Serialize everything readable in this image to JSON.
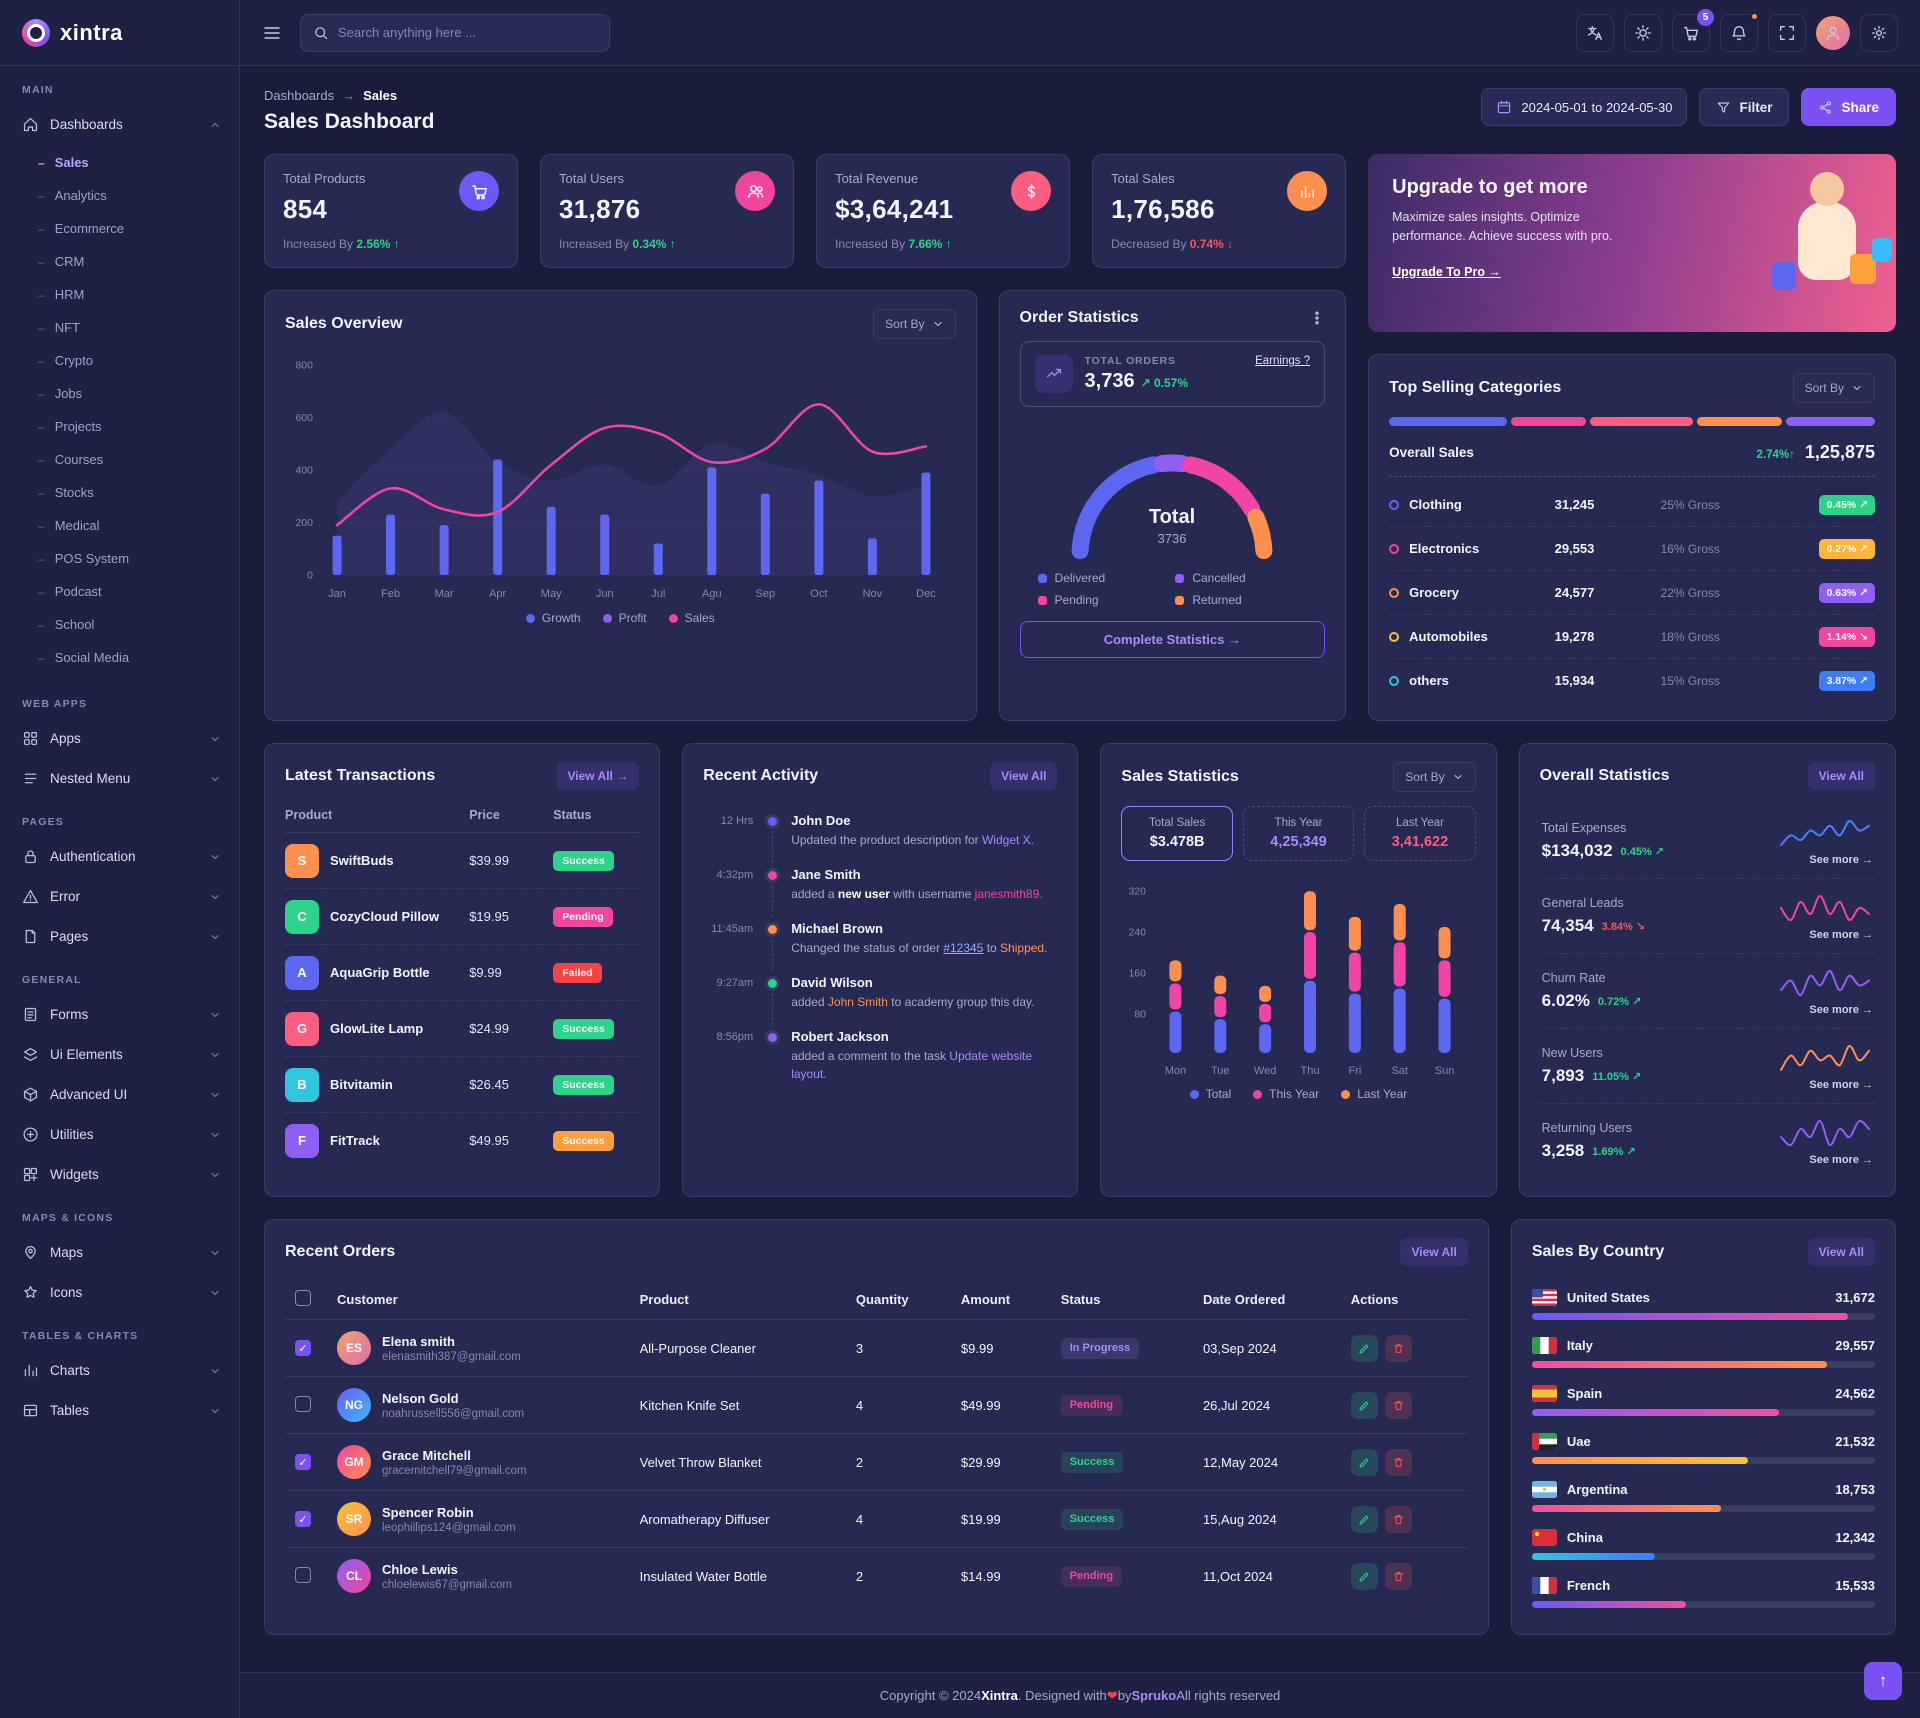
{
  "brand": {
    "name": "xintra"
  },
  "header": {
    "search_placeholder": "Search anything here ...",
    "cart_count": "5"
  },
  "page": {
    "breadcrumb": [
      "Dashboards",
      "Sales"
    ],
    "title": "Sales Dashboard",
    "date_range": "2024-05-01 to 2024-05-30",
    "filter_label": "Filter",
    "share_label": "Share"
  },
  "sidebar": {
    "sections": [
      {
        "label": "Main",
        "items": [
          {
            "label": "Dashboards",
            "icon": "home",
            "expanded": true,
            "active": true,
            "children": [
              "Sales",
              "Analytics",
              "Ecommerce",
              "CRM",
              "HRM",
              "NFT",
              "Crypto",
              "Jobs",
              "Projects",
              "Courses",
              "Stocks",
              "Medical",
              "POS System",
              "Podcast",
              "School",
              "Social Media"
            ],
            "active_child": "Sales"
          }
        ]
      },
      {
        "label": "Web Apps",
        "items": [
          {
            "label": "Apps",
            "icon": "apps"
          },
          {
            "label": "Nested Menu",
            "icon": "nested"
          }
        ]
      },
      {
        "label": "Pages",
        "items": [
          {
            "label": "Authentication",
            "icon": "lock"
          },
          {
            "label": "Error",
            "icon": "error"
          },
          {
            "label": "Pages",
            "icon": "pages"
          }
        ]
      },
      {
        "label": "General",
        "items": [
          {
            "label": "Forms",
            "icon": "forms"
          },
          {
            "label": "Ui Elements",
            "icon": "ui"
          },
          {
            "label": "Advanced UI",
            "icon": "advanced"
          },
          {
            "label": "Utilities",
            "icon": "utilities"
          },
          {
            "label": "Widgets",
            "icon": "widgets"
          }
        ]
      },
      {
        "label": "Maps & Icons",
        "items": [
          {
            "label": "Maps",
            "icon": "maps"
          },
          {
            "label": "Icons",
            "icon": "icons"
          }
        ]
      },
      {
        "label": "Tables & Charts",
        "items": [
          {
            "label": "Charts",
            "icon": "charts"
          },
          {
            "label": "Tables",
            "icon": "tables"
          }
        ]
      }
    ]
  },
  "stat_cards": [
    {
      "label": "Total Products",
      "value": "854",
      "change_prefix": "Increased By",
      "change": "2.56%",
      "dir": "up",
      "icon": "cart",
      "icon_bg": "#6a5af9"
    },
    {
      "label": "Total Users",
      "value": "31,876",
      "change_prefix": "Increased By",
      "change": "0.34%",
      "dir": "up",
      "icon": "users",
      "icon_bg": "#f0479c"
    },
    {
      "label": "Total Revenue",
      "value": "$3,64,241",
      "change_prefix": "Increased By",
      "change": "7.66%",
      "dir": "up",
      "icon": "dollar",
      "icon_bg": "#fd5d7e"
    },
    {
      "label": "Total Sales",
      "value": "1,76,586",
      "change_prefix": "Decreased By",
      "change": "0.74%",
      "dir": "down",
      "icon": "chartbar",
      "icon_bg": "#ff8f4e"
    }
  ],
  "upgrade": {
    "title": "Upgrade to get more",
    "text": "Maximize sales insights. Optimize performance. Achieve success with pro.",
    "cta": "Upgrade To Pro →"
  },
  "sales_overview": {
    "title": "Sales Overview",
    "sort_label": "Sort By",
    "chart": {
      "type": "combo",
      "months": [
        "Jan",
        "Feb",
        "Mar",
        "Apr",
        "May",
        "Jun",
        "Jul",
        "Agu",
        "Sep",
        "Oct",
        "Nov",
        "Dec"
      ],
      "growth_bars": [
        150,
        230,
        190,
        440,
        260,
        230,
        120,
        410,
        310,
        360,
        140,
        390
      ],
      "sales_line": [
        190,
        330,
        250,
        240,
        420,
        560,
        540,
        430,
        480,
        650,
        470,
        490
      ],
      "profit_area": [
        280,
        480,
        620,
        430,
        360,
        420,
        340,
        500,
        430,
        380,
        300,
        340
      ],
      "yticks": [
        0,
        200,
        400,
        600,
        800
      ],
      "ymax": 800
    },
    "legend": [
      {
        "label": "Growth",
        "color": "#5e67f2"
      },
      {
        "label": "Profit",
        "color": "#8f5ff5"
      },
      {
        "label": "Sales",
        "color": "#f243a6"
      }
    ]
  },
  "order_statistics": {
    "title": "Order Statistics",
    "total_label": "TOTAL ORDERS",
    "total": "3,736",
    "change": "0.57%",
    "earnings_link": "Earnings ?",
    "gauge": {
      "center_label": "Total",
      "center_value": "3736",
      "segments": [
        {
          "label": "Delivered",
          "value": 45,
          "color": "#5e67f2"
        },
        {
          "label": "Cancelled",
          "value": 10,
          "color": "#8f5ff5"
        },
        {
          "label": "Pending",
          "value": 30,
          "color": "#f243a6"
        },
        {
          "label": "Returned",
          "value": 15,
          "color": "#ff8f4e"
        }
      ]
    },
    "cta": "Complete Statistics →"
  },
  "top_categories": {
    "title": "Top Selling Categories",
    "sort_label": "Sort By",
    "overall_label": "Overall Sales",
    "overall_change": "2.74%↑",
    "overall_value": "1,25,875",
    "bar_segments": [
      {
        "color": "#5e67f2",
        "w": 25
      },
      {
        "color": "#f0479c",
        "w": 16
      },
      {
        "color": "#fd5d7e",
        "w": 22
      },
      {
        "color": "#ff8f4e",
        "w": 18
      },
      {
        "color": "#8f5ff5",
        "w": 19
      }
    ],
    "rows": [
      {
        "name": "Clothing",
        "dot": "#5e67f2",
        "value": "31,245",
        "gross": "25% Gross",
        "badge": "0.45%",
        "dir": "up",
        "badge_color": "#2dd38a"
      },
      {
        "name": "Electronics",
        "dot": "#f0479c",
        "value": "29,553",
        "gross": "16% Gross",
        "badge": "0.27%",
        "dir": "up",
        "badge_color": "#ffb43a"
      },
      {
        "name": "Grocery",
        "dot": "#ff8f4e",
        "value": "24,577",
        "gross": "22% Gross",
        "badge": "0.63%",
        "dir": "up",
        "badge_color": "#8f5ff5"
      },
      {
        "name": "Automobiles",
        "dot": "#f5c33b",
        "value": "19,278",
        "gross": "18% Gross",
        "badge": "1.14%",
        "dir": "down",
        "badge_color": "#f0479c"
      },
      {
        "name": "others",
        "dot": "#2fc6e0",
        "value": "15,934",
        "gross": "15% Gross",
        "badge": "3.87%",
        "dir": "up",
        "badge_color": "#3e7df6"
      }
    ]
  },
  "transactions": {
    "title": "Latest Transactions",
    "view_all": "View All →",
    "headers": [
      "Product",
      "Price",
      "Status"
    ],
    "rows": [
      {
        "product": "SwiftBuds",
        "price": "$39.99",
        "status": "Success",
        "status_color": "#2dd38a",
        "tile": "#ff8f4e"
      },
      {
        "product": "CozyCloud Pillow",
        "price": "$19.95",
        "status": "Pending",
        "status_color": "#f0479c",
        "tile": "#2dd38a"
      },
      {
        "product": "AquaGrip Bottle",
        "price": "$9.99",
        "status": "Failed",
        "status_color": "#fb4242",
        "tile": "#5e67f2"
      },
      {
        "product": "GlowLite Lamp",
        "price": "$24.99",
        "status": "Success",
        "status_color": "#2dd38a",
        "tile": "#fb5e7e"
      },
      {
        "product": "Bitvitamin",
        "price": "$26.45",
        "status": "Success",
        "status_color": "#2dd38a",
        "tile": "#2fc6e0"
      },
      {
        "product": "FitTrack",
        "price": "$49.95",
        "status": "Success",
        "status_color": "#ff9e3d",
        "tile": "#8f5ff5"
      }
    ]
  },
  "activity": {
    "title": "Recent Activity",
    "view_all": "View All",
    "items": [
      {
        "time": "12 Hrs",
        "dot": "#6a5af9",
        "name": "John Doe",
        "parts": [
          {
            "t": "Updated the product description for "
          },
          {
            "t": "Widget X.",
            "c": "violet"
          }
        ]
      },
      {
        "time": "4:32pm",
        "dot": "#f0479c",
        "name": "Jane Smith",
        "parts": [
          {
            "t": "added a "
          },
          {
            "t": "new user",
            "c": "b"
          },
          {
            "t": " with username "
          },
          {
            "t": "janesmith89.",
            "c": "pink"
          }
        ]
      },
      {
        "time": "11:45am",
        "dot": "#ff8f4e",
        "name": "Michael Brown",
        "parts": [
          {
            "t": "Changed the status of order "
          },
          {
            "t": "#12345",
            "c": "link"
          },
          {
            "t": " to "
          },
          {
            "t": "Shipped.",
            "c": "orange"
          }
        ]
      },
      {
        "time": "9:27am",
        "dot": "#2dd38a",
        "name": "David Wilson",
        "parts": [
          {
            "t": "added "
          },
          {
            "t": "John Smith",
            "c": "orange"
          },
          {
            "t": " to academy group this day."
          }
        ]
      },
      {
        "time": "8:56pm",
        "dot": "#8f5ff5",
        "name": "Robert Jackson",
        "parts": [
          {
            "t": "added a comment to the task "
          },
          {
            "t": "Update website layout.",
            "c": "violet"
          }
        ]
      }
    ]
  },
  "sales_statistics": {
    "title": "Sales Statistics",
    "sort_label": "Sort By",
    "boxes": [
      {
        "label": "Total Sales",
        "value": "$3.478B",
        "style": "active"
      },
      {
        "label": "This Year",
        "value": "4,25,349",
        "style": "violet"
      },
      {
        "label": "Last Year",
        "value": "3,41,622",
        "style": "red"
      }
    ],
    "chart": {
      "type": "stacked-bar",
      "days": [
        "Mon",
        "Tue",
        "Wed",
        "Thu",
        "Fri",
        "Sat",
        "Sun"
      ],
      "series": [
        {
          "name": "Total",
          "color": "#5e67f2",
          "values": [
            85,
            70,
            60,
            145,
            120,
            130,
            110
          ]
        },
        {
          "name": "This Year",
          "color": "#f243a6",
          "values": [
            55,
            45,
            40,
            95,
            80,
            90,
            75
          ]
        },
        {
          "name": "Last Year",
          "color": "#ff8f4e",
          "values": [
            45,
            40,
            35,
            80,
            70,
            75,
            65
          ]
        }
      ],
      "yticks": [
        80,
        160,
        240,
        320
      ],
      "ymax": 340
    }
  },
  "overall_statistics": {
    "title": "Overall Statistics",
    "view_all": "View All",
    "see_more": "See more →",
    "rows": [
      {
        "label": "Total Expenses",
        "value": "$134,032",
        "pct": "0.45%",
        "dir": "up",
        "spark_color": "#4a7dff",
        "spark": [
          3,
          5,
          4,
          6,
          5,
          7,
          5,
          8,
          6,
          7
        ]
      },
      {
        "label": "General Leads",
        "value": "74,354",
        "pct": "3.84%",
        "dir": "down",
        "spark_color": "#f0479c",
        "spark": [
          6,
          4,
          7,
          5,
          8,
          5,
          7,
          4,
          6,
          5
        ]
      },
      {
        "label": "Churn Rate",
        "value": "6.02%",
        "pct": "0.72%",
        "dir": "up",
        "spark_color": "#8f5ff5",
        "spark": [
          4,
          6,
          3,
          7,
          5,
          8,
          4,
          7,
          5,
          6
        ]
      },
      {
        "label": "New Users",
        "value": "7,893",
        "pct": "11.05%",
        "dir": "up",
        "spark_color": "#ff8f4e",
        "spark": [
          3,
          6,
          4,
          7,
          5,
          6,
          4,
          8,
          5,
          7
        ]
      },
      {
        "label": "Returning Users",
        "value": "3,258",
        "pct": "1.69%",
        "dir": "up",
        "spark_color": "#8f5ff5",
        "spark": [
          5,
          4,
          6,
          5,
          7,
          4,
          6,
          5,
          7,
          6
        ]
      }
    ]
  },
  "recent_orders": {
    "title": "Recent Orders",
    "view_all": "View All",
    "headers": [
      "Customer",
      "Product",
      "Quantity",
      "Amount",
      "Status",
      "Date Ordered",
      "Actions"
    ],
    "rows": [
      {
        "checked": true,
        "customer": "Elena smith",
        "email": "elenasmith387@gmail.com",
        "product": "All-Purpose Cleaner",
        "qty": "3",
        "amount": "$9.99",
        "status": "In Progress",
        "status_color": "#a78bfa",
        "date": "03,Sep 2024"
      },
      {
        "checked": false,
        "customer": "Nelson Gold",
        "email": "noahrussell556@gmail.com",
        "product": "Kitchen Knife Set",
        "qty": "4",
        "amount": "$49.99",
        "status": "Pending",
        "status_color": "#f0479c",
        "date": "26,Jul 2024"
      },
      {
        "checked": true,
        "customer": "Grace Mitchell",
        "email": "gracemitchell79@gmail.com",
        "product": "Velvet Throw Blanket",
        "qty": "2",
        "amount": "$29.99",
        "status": "Success",
        "status_color": "#2dd38a",
        "date": "12,May 2024"
      },
      {
        "checked": true,
        "customer": "Spencer Robin",
        "email": "leophillips124@gmail.com",
        "product": "Aromatherapy Diffuser",
        "qty": "4",
        "amount": "$19.99",
        "status": "Success",
        "status_color": "#2dd38a",
        "date": "15,Aug 2024"
      },
      {
        "checked": false,
        "customer": "Chloe Lewis",
        "email": "chloelewis67@gmail.com",
        "product": "Insulated Water Bottle",
        "qty": "2",
        "amount": "$14.99",
        "status": "Pending",
        "status_color": "#f0479c",
        "date": "11,Oct 2024"
      }
    ]
  },
  "sales_by_country": {
    "title": "Sales By Country",
    "view_all": "View All",
    "rows": [
      {
        "name": "United States",
        "flag": "us",
        "value": "31,672",
        "pct": 92,
        "g": [
          "#6a5af9",
          "#f04fa0"
        ]
      },
      {
        "name": "Italy",
        "flag": "it",
        "value": "29,557",
        "pct": 86,
        "g": [
          "#f04fa0",
          "#ff8f4e"
        ]
      },
      {
        "name": "Spain",
        "flag": "es",
        "value": "24,562",
        "pct": 72,
        "g": [
          "#8f5ff5",
          "#f04fa0"
        ]
      },
      {
        "name": "Uae",
        "flag": "ae",
        "value": "21,532",
        "pct": 63,
        "g": [
          "#ff8f4e",
          "#f5c33b"
        ]
      },
      {
        "name": "Argentina",
        "flag": "ar",
        "value": "18,753",
        "pct": 55,
        "g": [
          "#f04fa0",
          "#ff8f4e"
        ]
      },
      {
        "name": "China",
        "flag": "cn",
        "value": "12,342",
        "pct": 36,
        "g": [
          "#2fc6e0",
          "#3e7df6"
        ]
      },
      {
        "name": "French",
        "flag": "fr",
        "value": "15,533",
        "pct": 45,
        "g": [
          "#6a5af9",
          "#f04fa0"
        ]
      }
    ]
  },
  "footer": {
    "parts": [
      "Copyright © 2024 ",
      "Xintra",
      ". Designed with ",
      "❤",
      " by ",
      "Spruko",
      " All rights reserved"
    ]
  }
}
